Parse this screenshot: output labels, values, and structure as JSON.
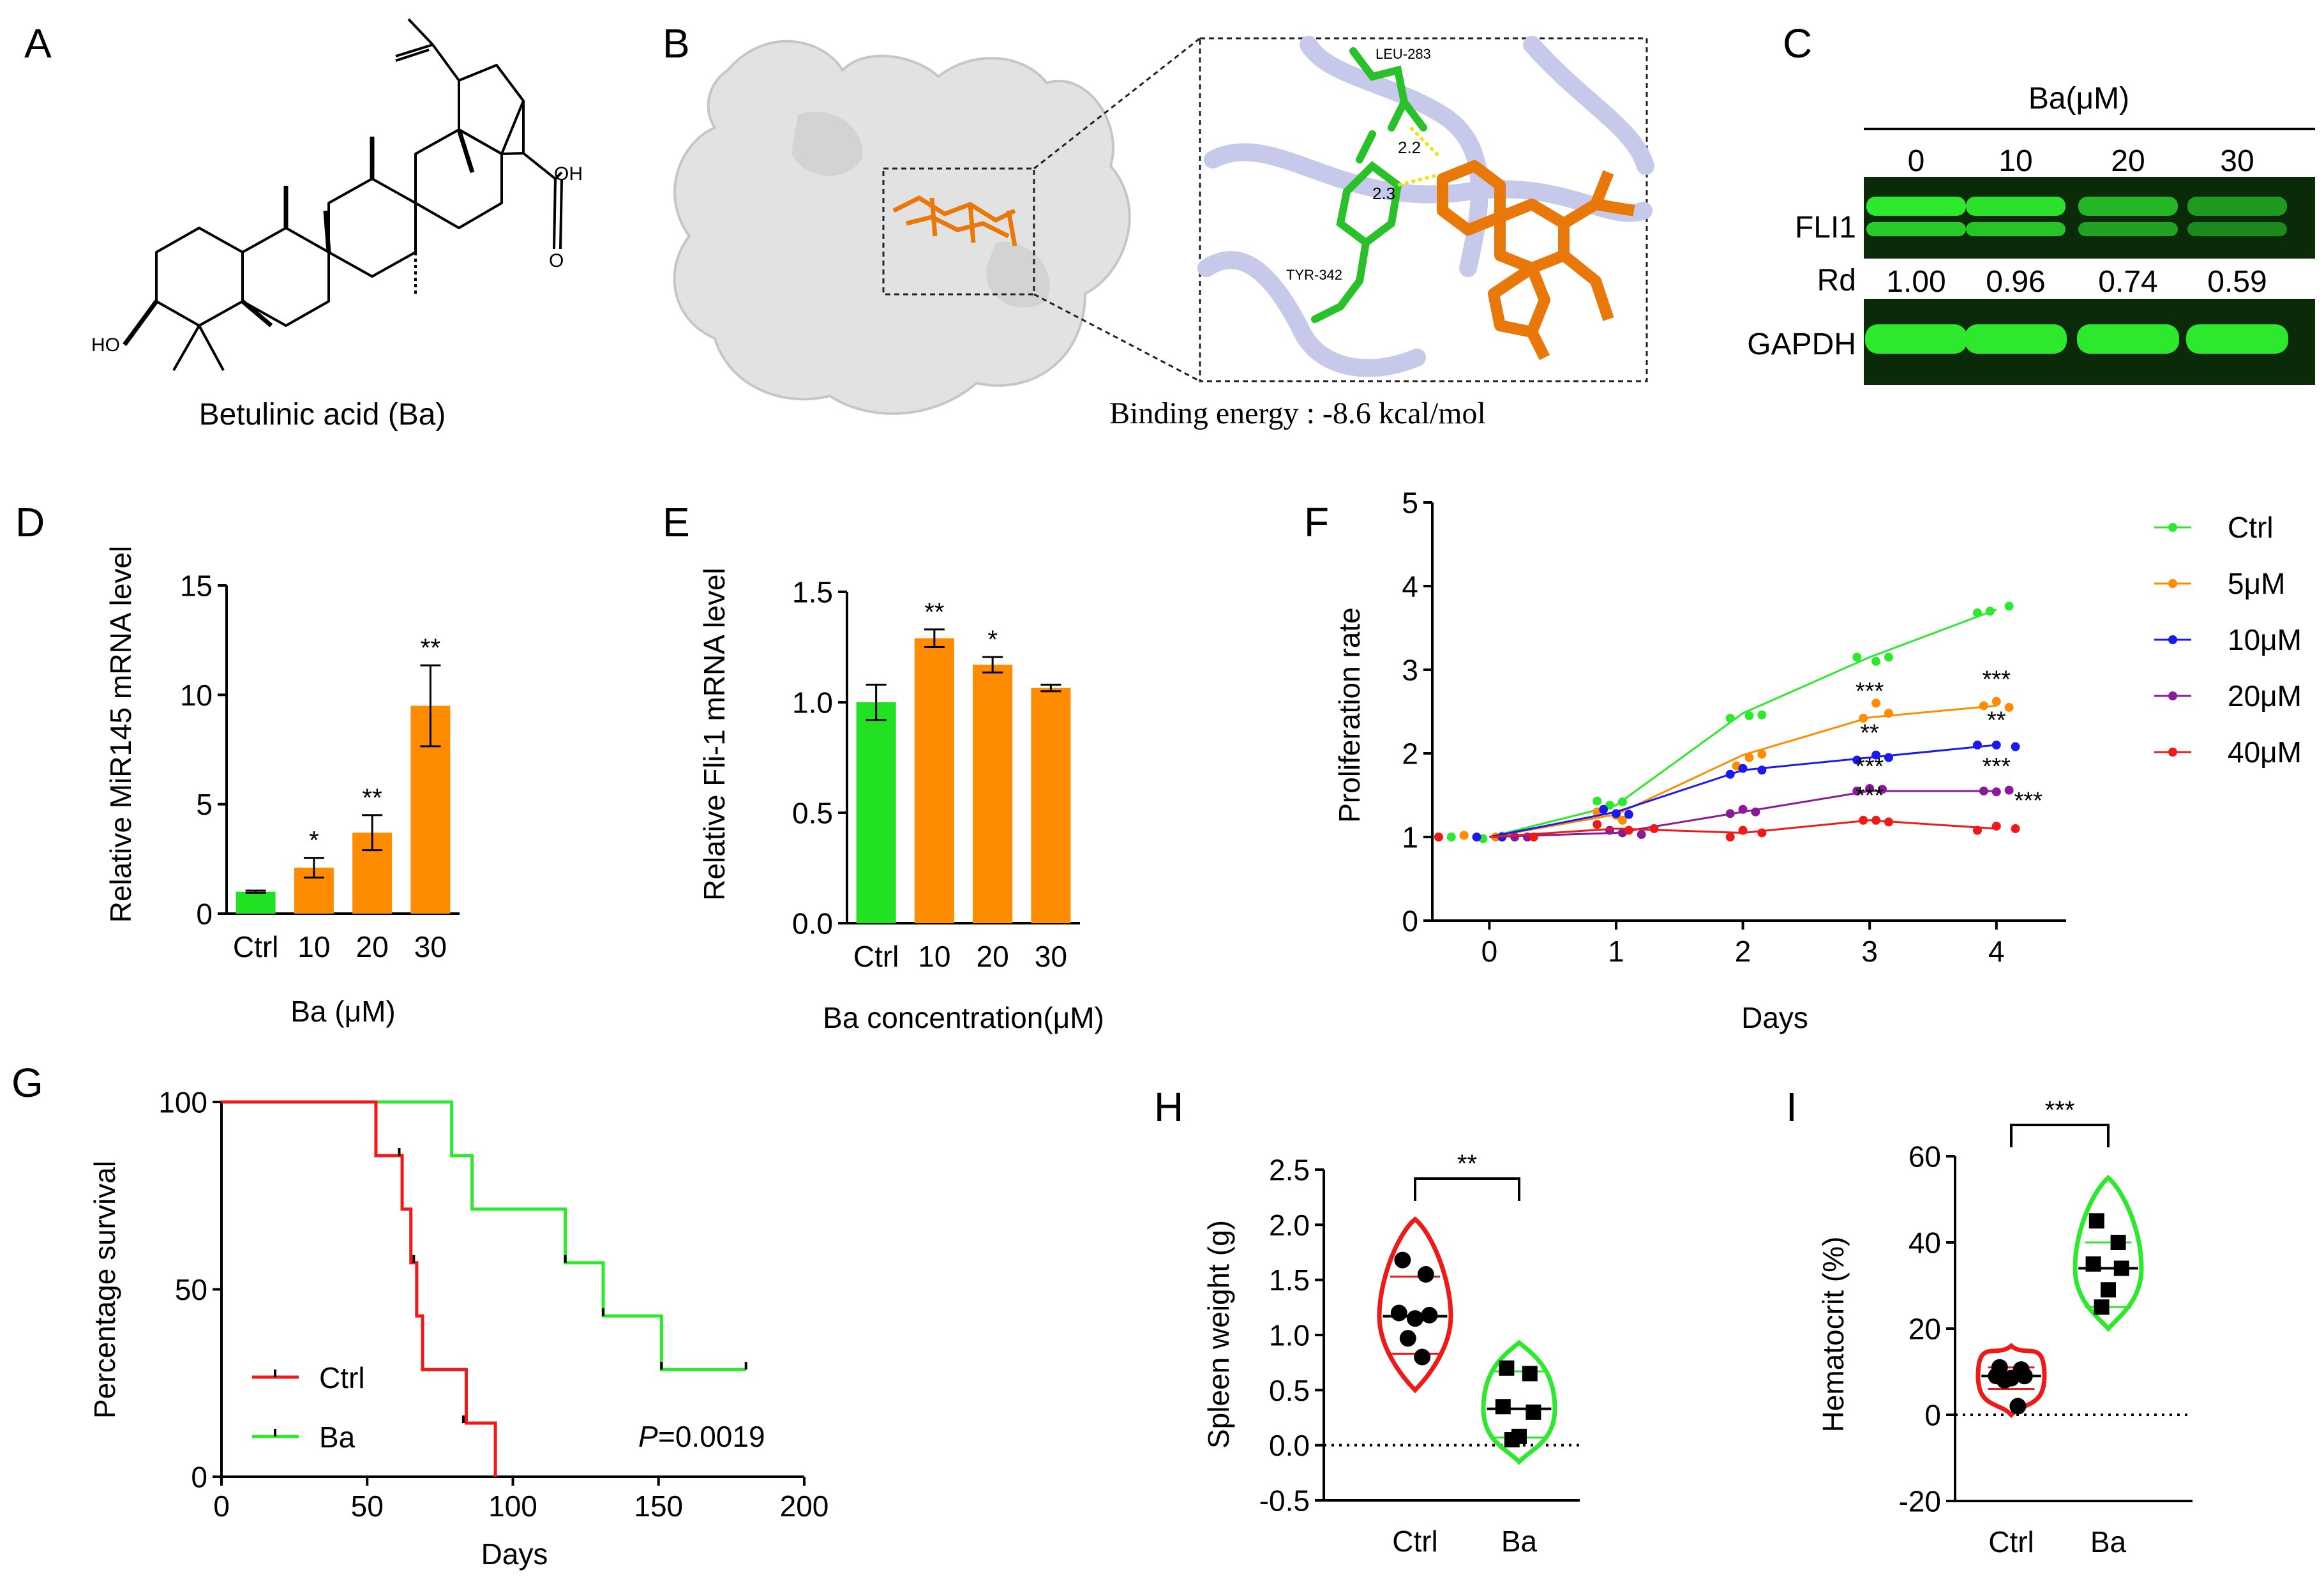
{
  "figure": {
    "panel_letters": [
      "A",
      "B",
      "C",
      "D",
      "E",
      "F",
      "G",
      "H",
      "I"
    ]
  },
  "panel_a": {
    "compound_name": "Betulinic acid (Ba)",
    "labels": {
      "ho": "HO",
      "oh": "OH",
      "o": "O"
    }
  },
  "panel_b": {
    "binding_energy": "Binding energy : -8.6 kcal/mol",
    "residues": [
      "LEU-283",
      "TYR-342"
    ],
    "distances": [
      "2.2",
      "2.3"
    ]
  },
  "panel_c": {
    "header": "Ba(μM)",
    "lanes": [
      "0",
      "10",
      "20",
      "30"
    ],
    "row_labels": {
      "fli1": "FLI1",
      "rd": "Rd",
      "gapdh": "GAPDH"
    },
    "rd_values": [
      "1.00",
      "0.96",
      "0.74",
      "0.59"
    ],
    "band_intensity": [
      1.0,
      0.96,
      0.74,
      0.59
    ],
    "colors": {
      "band": "#2ee82e",
      "blot_bg": "#0a2a0a"
    }
  },
  "chart_data": [
    {
      "id": "D",
      "type": "bar",
      "categories": [
        "Ctrl",
        "10",
        "20",
        "30"
      ],
      "values": [
        1.0,
        2.1,
        3.7,
        9.5
      ],
      "errors": [
        0.05,
        0.45,
        0.8,
        1.85
      ],
      "significance": [
        "",
        "*",
        "**",
        "**"
      ],
      "colors": [
        "#22e022",
        "#ff8c00",
        "#ff8c00",
        "#ff8c00"
      ],
      "ylabel": "Relative MiR145 mRNA level",
      "xlabel": "Ba (μM)",
      "ylim": [
        0,
        15
      ],
      "yticks": [
        "0",
        "5",
        "10",
        "15"
      ]
    },
    {
      "id": "E",
      "type": "bar",
      "categories": [
        "Ctrl",
        "10",
        "20",
        "30"
      ],
      "values": [
        1.0,
        1.29,
        1.17,
        1.065
      ],
      "errors": [
        0.08,
        0.04,
        0.035,
        0.015
      ],
      "significance": [
        "",
        "**",
        "*",
        ""
      ],
      "colors": [
        "#22e022",
        "#ff8c00",
        "#ff8c00",
        "#ff8c00"
      ],
      "ylabel": "Relative Fli-1 mRNA level",
      "xlabel": "Ba concentration(μM)",
      "ylim": [
        0,
        1.5
      ],
      "yticks": [
        "0.0",
        "0.5",
        "1.0",
        "1.5"
      ]
    },
    {
      "id": "F",
      "type": "line",
      "x": [
        0,
        1,
        2,
        3,
        4
      ],
      "xticks": [
        "0",
        "1",
        "2",
        "3",
        "4"
      ],
      "yticks": [
        "0",
        "1",
        "2",
        "3",
        "4",
        "5"
      ],
      "xlim": [
        -0.45,
        4.55
      ],
      "ylim": [
        0,
        5
      ],
      "xlabel": "Days",
      "ylabel": "Proliferation rate",
      "legend_position": "top-right",
      "series": [
        {
          "name": "Ctrl",
          "color": "#2ee82e",
          "values": [
            1.0,
            1.38,
            2.48,
            3.15,
            3.72
          ],
          "points": [
            [
              -0.3,
              1.0
            ],
            [
              -0.05,
              0.98
            ],
            [
              0.1,
              1.01
            ],
            [
              0.85,
              1.43
            ],
            [
              0.95,
              1.38
            ],
            [
              1.05,
              1.42
            ],
            [
              1.9,
              2.42
            ],
            [
              2.05,
              2.45
            ],
            [
              2.15,
              2.46
            ],
            [
              2.9,
              3.15
            ],
            [
              3.05,
              3.1
            ],
            [
              3.15,
              3.15
            ],
            [
              3.85,
              3.68
            ],
            [
              3.95,
              3.7
            ],
            [
              4.1,
              3.76
            ]
          ],
          "sig": ""
        },
        {
          "name": "5μM",
          "color": "#ff8c00",
          "values": [
            1.0,
            1.27,
            1.98,
            2.43,
            2.57
          ],
          "points": [
            [
              -0.2,
              1.02
            ],
            [
              0.05,
              1.0
            ],
            [
              0.85,
              1.3
            ],
            [
              1.0,
              1.26
            ],
            [
              1.05,
              1.2
            ],
            [
              1.95,
              1.85
            ],
            [
              2.05,
              1.95
            ],
            [
              2.15,
              1.99
            ],
            [
              2.95,
              2.42
            ],
            [
              3.05,
              2.6
            ],
            [
              3.15,
              2.48
            ],
            [
              3.9,
              2.57
            ],
            [
              4.0,
              2.62
            ],
            [
              4.1,
              2.55
            ]
          ],
          "sig": "***"
        },
        {
          "name": "10μM",
          "color": "#1a1aee",
          "values": [
            1.0,
            1.3,
            1.8,
            1.95,
            2.1
          ],
          "points": [
            [
              -0.1,
              1.0
            ],
            [
              0.1,
              1.0
            ],
            [
              0.9,
              1.33
            ],
            [
              1.0,
              1.28
            ],
            [
              1.1,
              1.27
            ],
            [
              1.9,
              1.75
            ],
            [
              2.0,
              1.82
            ],
            [
              2.15,
              1.8
            ],
            [
              2.9,
              1.92
            ],
            [
              3.05,
              1.98
            ],
            [
              3.15,
              1.95
            ],
            [
              3.85,
              2.1
            ],
            [
              4.0,
              2.1
            ],
            [
              4.15,
              2.08
            ]
          ],
          "sig": "**"
        },
        {
          "name": "20μM",
          "color": "#8b1a9b",
          "values": [
            1.0,
            1.05,
            1.3,
            1.55,
            1.55
          ],
          "points": [
            [
              0.2,
              1.0
            ],
            [
              0.3,
              1.0
            ],
            [
              0.95,
              1.08
            ],
            [
              1.05,
              1.05
            ],
            [
              1.2,
              1.03
            ],
            [
              1.9,
              1.28
            ],
            [
              2.0,
              1.33
            ],
            [
              2.1,
              1.3
            ],
            [
              2.9,
              1.55
            ],
            [
              3.0,
              1.58
            ],
            [
              3.1,
              1.57
            ],
            [
              3.9,
              1.55
            ],
            [
              4.0,
              1.54
            ],
            [
              4.1,
              1.56
            ]
          ],
          "sig": "***"
        },
        {
          "name": "40μM",
          "color": "#ee1a1a",
          "values": [
            1.0,
            1.1,
            1.05,
            1.2,
            1.1
          ],
          "points": [
            [
              -0.4,
              1.0
            ],
            [
              0.35,
              1.0
            ],
            [
              0.85,
              1.15
            ],
            [
              1.1,
              1.08
            ],
            [
              1.3,
              1.1
            ],
            [
              1.9,
              1.0
            ],
            [
              2.0,
              1.08
            ],
            [
              2.15,
              1.05
            ],
            [
              2.95,
              1.2
            ],
            [
              3.05,
              1.2
            ],
            [
              3.15,
              1.18
            ],
            [
              3.85,
              1.08
            ],
            [
              4.0,
              1.13
            ],
            [
              4.15,
              1.1
            ]
          ],
          "sig": "***"
        }
      ]
    },
    {
      "id": "G",
      "type": "line",
      "subtype": "kaplan-meier",
      "xlabel": "Days",
      "ylabel": "Percentage survival",
      "xlim": [
        0,
        200
      ],
      "ylim": [
        0,
        100
      ],
      "xticks": [
        "0",
        "50",
        "100",
        "150",
        "200"
      ],
      "yticks": [
        "0",
        "50",
        "100"
      ],
      "p_label": "P",
      "p_value": "=0.0019",
      "legend_position": "bottom-left",
      "series": [
        {
          "name": "Ctrl",
          "color": "#ee1a1a",
          "steps": [
            [
              0,
              100
            ],
            [
              53,
              100
            ],
            [
              53,
              85.7
            ],
            [
              62,
              85.7
            ],
            [
              62,
              71.4
            ],
            [
              65,
              71.4
            ],
            [
              65,
              57.1
            ],
            [
              67,
              57.1
            ],
            [
              67,
              42.9
            ],
            [
              69,
              42.9
            ],
            [
              69,
              28.6
            ],
            [
              84,
              28.6
            ],
            [
              84,
              14.3
            ],
            [
              94,
              14.3
            ],
            [
              94,
              0
            ]
          ],
          "censor": [
            [
              61,
              85.7
            ],
            [
              66,
              57.1
            ],
            [
              83,
              14.3
            ]
          ]
        },
        {
          "name": "Ba",
          "color": "#2ee82e",
          "steps": [
            [
              0,
              100
            ],
            [
              53,
              100
            ],
            [
              79,
              100
            ],
            [
              79,
              85.7
            ],
            [
              86,
              85.7
            ],
            [
              86,
              71.4
            ],
            [
              118,
              71.4
            ],
            [
              118,
              57.1
            ],
            [
              131,
              57.1
            ],
            [
              131,
              42.9
            ],
            [
              151,
              42.9
            ],
            [
              151,
              28.6
            ],
            [
              180,
              28.6
            ]
          ],
          "censor": [
            [
              118,
              57.1
            ],
            [
              131,
              42.9
            ],
            [
              151,
              28.6
            ],
            [
              180,
              28.6
            ]
          ]
        }
      ]
    },
    {
      "id": "H",
      "type": "scatter",
      "subtype": "violin",
      "categories": [
        "Ctrl",
        "Ba"
      ],
      "ylabel": "Spleen weight (g)",
      "ylim": [
        -0.5,
        2.5
      ],
      "yticks": [
        "-0.5",
        "0.0",
        "0.5",
        "1.0",
        "1.5",
        "2.0",
        "2.5"
      ],
      "significance": "**",
      "groups": [
        {
          "name": "Ctrl",
          "color": "#ee1a1a",
          "marker": "circle",
          "points": [
            1.68,
            1.55,
            1.2,
            1.18,
            1.15,
            0.97,
            0.8
          ],
          "median": 1.17,
          "q1": 0.83,
          "q3": 1.53,
          "min": 0.5,
          "max": 2.05
        },
        {
          "name": "Ba",
          "color": "#2ee82e",
          "marker": "square",
          "points": [
            0.7,
            0.65,
            0.35,
            0.3,
            0.08,
            0.05
          ],
          "median": 0.33,
          "q1": 0.07,
          "q3": 0.67,
          "min": -0.15,
          "max": 0.93
        }
      ]
    },
    {
      "id": "I",
      "type": "scatter",
      "subtype": "violin",
      "categories": [
        "Ctrl",
        "Ba"
      ],
      "ylabel": "Hematocrit (%)",
      "ylim": [
        -20,
        60
      ],
      "yticks": [
        "-20",
        "0",
        "20",
        "40",
        "60"
      ],
      "significance": "***",
      "groups": [
        {
          "name": "Ctrl",
          "color": "#ee1a1a",
          "marker": "circle",
          "points": [
            11,
            10.5,
            9,
            9,
            8.5,
            8,
            2
          ],
          "median": 9,
          "q1": 6,
          "q3": 11,
          "min": 0,
          "max": 16
        },
        {
          "name": "Ba",
          "color": "#2ee82e",
          "marker": "square",
          "points": [
            45,
            40,
            35,
            34,
            29,
            25
          ],
          "median": 34,
          "q1": 25,
          "q3": 40,
          "min": 20,
          "max": 55
        }
      ]
    }
  ]
}
